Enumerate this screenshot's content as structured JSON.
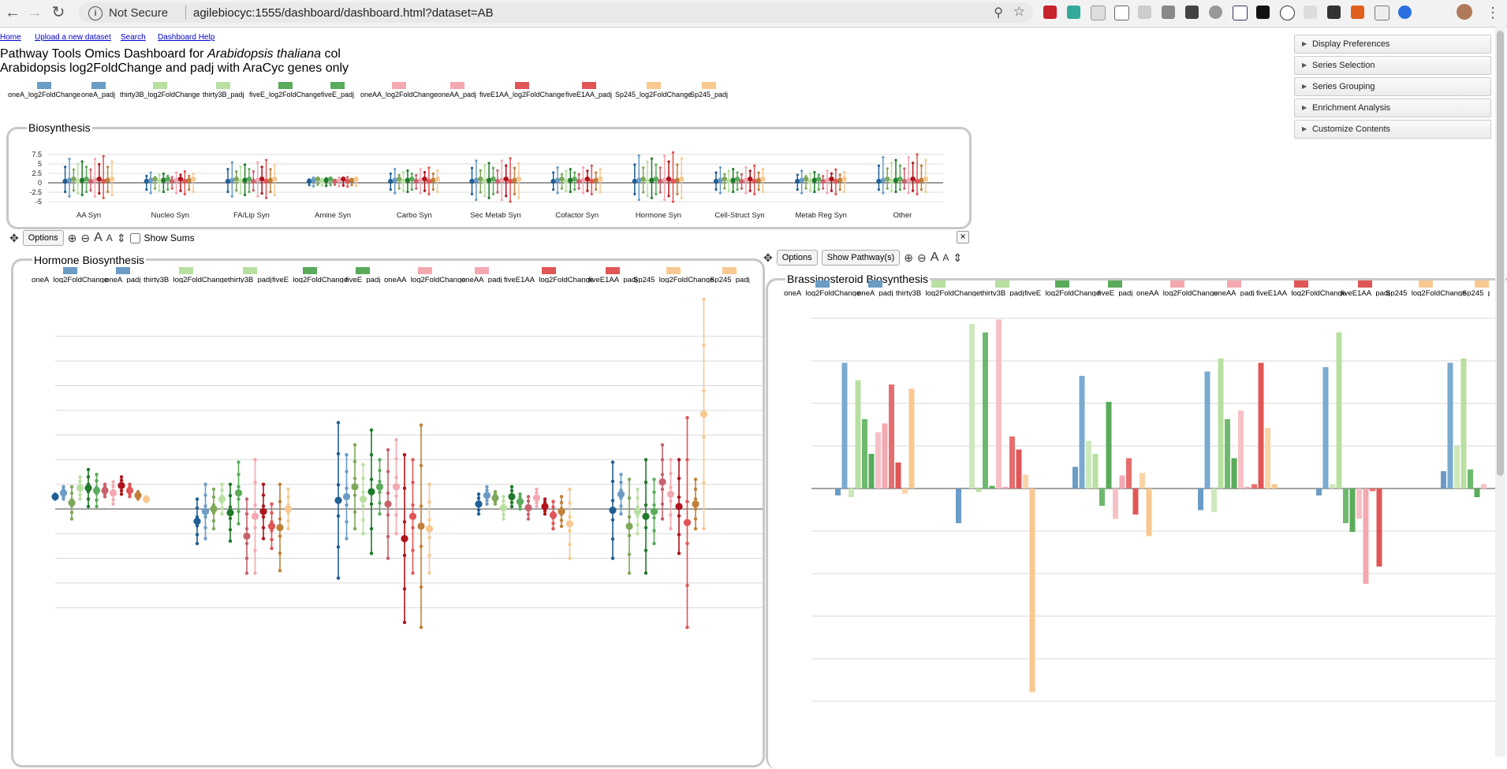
{
  "browser": {
    "security": "Not Secure",
    "url": "agilebiocyc:1555/dashboard/dashboard.html?dataset=AB",
    "info_icon": "info-icon",
    "zoom_icon": "zoom-icon",
    "star_icon": "bookmark-star-icon"
  },
  "nav": [
    {
      "label": "Home"
    },
    {
      "label": "Upload a new dataset"
    },
    {
      "label": "Search"
    },
    {
      "label": "Dashboard Help"
    }
  ],
  "header": {
    "title_prefix": "Pathway Tools Omics Dashboard for ",
    "organism": "Arabidopsis thaliana",
    "title_suffix": " col",
    "subtitle": "Arabidopsis log2FoldChange and padj with AraCyc genes only"
  },
  "legend": [
    {
      "label": "oneA_log2FoldChange",
      "color": "#6a9cc6"
    },
    {
      "label": "oneA_padj",
      "color": "#6a9cc6"
    },
    {
      "label": "thirty3B_log2FoldChange",
      "color": "#b8e0a0"
    },
    {
      "label": "thirty3B_padj",
      "color": "#b8e0a0"
    },
    {
      "label": "fiveE_log2FoldChange",
      "color": "#5aab5a"
    },
    {
      "label": "fiveE_padj",
      "color": "#5aab5a"
    },
    {
      "label": "oneAA_log2FoldChange",
      "color": "#f4a8b0"
    },
    {
      "label": "oneAA_padj",
      "color": "#f4a8b0"
    },
    {
      "label": "fiveE1AA_log2FoldChange",
      "color": "#e05656"
    },
    {
      "label": "fiveE1AA_padj",
      "color": "#e05656"
    },
    {
      "label": "Sp245_log2FoldChange",
      "color": "#f8c890"
    },
    {
      "label": "Sp245_padj",
      "color": "#f8c890"
    }
  ],
  "accordion": [
    {
      "label": "Display Preferences"
    },
    {
      "label": "Series Selection"
    },
    {
      "label": "Series Grouping"
    },
    {
      "label": "Enrichment Analysis"
    },
    {
      "label": "Customize Contents"
    }
  ],
  "toolbar1": {
    "options": "Options",
    "show_sums": "Show Sums",
    "close": "×"
  },
  "toolbar2": {
    "options": "Options",
    "show_pathways": "Show Pathway(s)"
  },
  "panels": {
    "biosynthesis": "Biosynthesis",
    "hormone": "Hormone Biosynthesis",
    "brassinosteroid": "Brassinosteroid Biosynthesis"
  },
  "chart_data": [
    {
      "type": "scatter",
      "title": "Biosynthesis",
      "categories": [
        "AA Syn",
        "Nucleo Syn",
        "FA/Lip Syn",
        "Amine Syn",
        "Carbo Syn",
        "Sec Metab Syn",
        "Cofactor Syn",
        "Hormone Syn",
        "Cell-Struct Syn",
        "Metab Reg Syn",
        "Other"
      ],
      "yticks": [
        "7.5",
        "5",
        "2.5",
        "0",
        "-2.5",
        "-5"
      ],
      "ylim": [
        -5,
        7.5
      ],
      "series_ranges": [
        [
          -4,
          7
        ],
        [
          -3,
          3
        ],
        [
          -4,
          6
        ],
        [
          -1,
          1.5
        ],
        [
          -3,
          4
        ],
        [
          -5,
          6.5
        ],
        [
          -3,
          4.5
        ],
        [
          -5,
          8
        ],
        [
          -3,
          4.5
        ],
        [
          -3,
          3.5
        ],
        [
          -3,
          7.5
        ]
      ]
    },
    {
      "type": "scatter",
      "title": "Hormone Biosynthesis",
      "groups": 5,
      "series_ranges": [
        [
          [
            0.4,
            0.6
          ],
          [
            0.4,
            0.9
          ],
          [
            -0.4,
            0.9
          ],
          [
            0.4,
            1.3
          ],
          [
            0.1,
            1.6
          ],
          [
            0.1,
            1.4
          ],
          [
            0.5,
            1.0
          ],
          [
            0.2,
            1.1
          ],
          [
            0.6,
            1.3
          ],
          [
            0.5,
            1.0
          ],
          [
            0.4,
            0.7
          ],
          [
            0.3,
            0.5
          ]
        ],
        [
          [
            -1.4,
            0.4
          ],
          [
            -1.2,
            1.0
          ],
          [
            -0.8,
            0.8
          ],
          [
            -0.2,
            1.0
          ],
          [
            -1.3,
            1.0
          ],
          [
            -0.6,
            1.9
          ],
          [
            -2.6,
            0.4
          ],
          [
            -2.6,
            2.0
          ],
          [
            -1.2,
            1.0
          ],
          [
            -1.6,
            0.2
          ],
          [
            -2.5,
            1.0
          ],
          [
            -0.8,
            0.8
          ]
        ],
        [
          [
            -2.8,
            3.5
          ],
          [
            -1.2,
            2.2
          ],
          [
            -0.8,
            2.6
          ],
          [
            -1.0,
            1.8
          ],
          [
            -1.8,
            3.2
          ],
          [
            -0.2,
            2.0
          ],
          [
            -2.0,
            2.4
          ],
          [
            -1.0,
            2.8
          ],
          [
            -4.6,
            2.2
          ],
          [
            -2.6,
            2.0
          ],
          [
            -4.8,
            3.4
          ],
          [
            -2.6,
            1.0
          ]
        ],
        [
          [
            -0.2,
            0.6
          ],
          [
            0.2,
            0.9
          ],
          [
            0.2,
            0.7
          ],
          [
            -0.4,
            0.5
          ],
          [
            0.1,
            0.9
          ],
          [
            0,
            0.6
          ],
          [
            -0.4,
            0.5
          ],
          [
            0.1,
            0.8
          ],
          [
            -0.2,
            0.4
          ],
          [
            -0.8,
            0.3
          ],
          [
            -0.7,
            0.5
          ],
          [
            -2.0,
            0.8
          ]
        ],
        [
          [
            -2.0,
            1.9
          ],
          [
            -0.2,
            1.4
          ],
          [
            -2.6,
            1.2
          ],
          [
            -1.0,
            0.8
          ],
          [
            -2.6,
            2.0
          ],
          [
            -1.4,
            1.2
          ],
          [
            -0.4,
            2.6
          ],
          [
            -0.8,
            2.0
          ],
          [
            -1.8,
            2.0
          ],
          [
            -4.8,
            3.7
          ],
          [
            -0.8,
            1.2
          ],
          [
            -0.8,
            8.5
          ]
        ]
      ]
    },
    {
      "type": "bar",
      "title": "Brassinosteroid Biosynthesis",
      "groups": 6,
      "series_values": [
        [
          -0.8,
          14.5,
          -1.0,
          12.5,
          8.0,
          4.0,
          6.5,
          7.5,
          12.0,
          3.0,
          -0.6,
          11.5
        ],
        [
          -4.0,
          0.1,
          19.0,
          -0.4,
          18.0,
          0.3,
          19.5,
          0.2,
          6.0,
          4.5,
          1.6,
          -23.5
        ],
        [
          2.5,
          13.0,
          5.5,
          4.0,
          -2.0,
          10.0,
          -3.5,
          1.5,
          3.5,
          -3.0,
          1.8,
          -5.5
        ],
        [
          -2.5,
          13.5,
          -2.7,
          15.0,
          8.0,
          3.5,
          9.0,
          0.2,
          0.5,
          14.5,
          7.0,
          0.5
        ],
        [
          -0.8,
          14.0,
          0.5,
          18.0,
          -4.0,
          -5.0,
          -3.5,
          -11.0,
          -0.3,
          -9.0
        ],
        [
          2.0,
          14.5,
          5.0,
          15.0,
          2.2,
          -1.0,
          0.5
        ]
      ],
      "ylim": [
        -24,
        20
      ]
    }
  ]
}
